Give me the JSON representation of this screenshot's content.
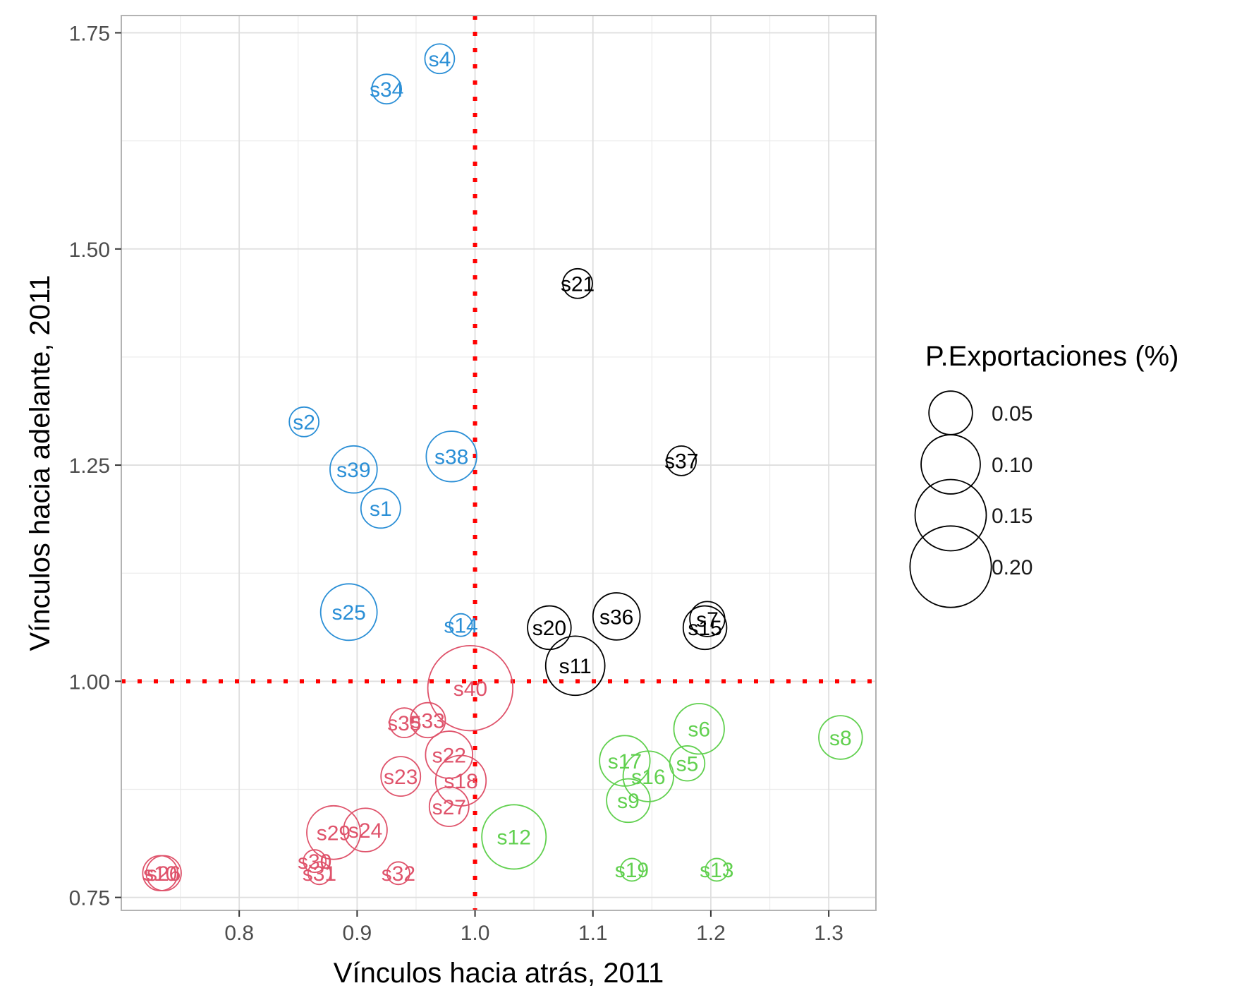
{
  "chart_data": {
    "type": "scatter",
    "xlabel": "Vínculos hacia atrás, 2011",
    "ylabel": "Vínculos hacia adelante, 2011",
    "xlim": [
      0.7,
      1.34
    ],
    "ylim": [
      0.735,
      1.77
    ],
    "x_ticks": [
      "0.8",
      "0.9",
      "1.0",
      "1.1",
      "1.2",
      "1.3"
    ],
    "y_ticks": [
      "0.75",
      "1.00",
      "1.25",
      "1.50",
      "1.75"
    ],
    "grid": true,
    "reference_lines": {
      "x": 1.0,
      "y": 1.0,
      "color": "#ff0000",
      "style": "dotted"
    },
    "legend": {
      "title": "P.Exportaciones (%)",
      "position": "right",
      "entries": [
        "0.05",
        "0.10",
        "0.15",
        "0.20"
      ],
      "sizes": [
        0.05,
        0.1,
        0.15,
        0.2
      ]
    },
    "group_colors": {
      "high_forward": "#2b8fd6",
      "key": "#000000",
      "weak": "#df536b",
      "high_backward": "#61d04f"
    },
    "points": [
      {
        "label": "s4",
        "x": 0.97,
        "y": 1.72,
        "size": 0.02,
        "group": "high_forward"
      },
      {
        "label": "s34",
        "x": 0.925,
        "y": 1.685,
        "size": 0.02,
        "group": "high_forward"
      },
      {
        "label": "s2",
        "x": 0.855,
        "y": 1.3,
        "size": 0.02,
        "group": "high_forward"
      },
      {
        "label": "s39",
        "x": 0.897,
        "y": 1.245,
        "size": 0.06,
        "group": "high_forward"
      },
      {
        "label": "s38",
        "x": 0.98,
        "y": 1.26,
        "size": 0.07,
        "group": "high_forward"
      },
      {
        "label": "s1",
        "x": 0.92,
        "y": 1.2,
        "size": 0.04,
        "group": "high_forward"
      },
      {
        "label": "s25",
        "x": 0.893,
        "y": 1.08,
        "size": 0.09,
        "group": "high_forward"
      },
      {
        "label": "s14",
        "x": 0.988,
        "y": 1.065,
        "size": 0.01,
        "group": "high_forward"
      },
      {
        "label": "s21",
        "x": 1.087,
        "y": 1.46,
        "size": 0.02,
        "group": "key"
      },
      {
        "label": "s37",
        "x": 1.175,
        "y": 1.255,
        "size": 0.02,
        "group": "key"
      },
      {
        "label": "s36",
        "x": 1.12,
        "y": 1.075,
        "size": 0.06,
        "group": "key"
      },
      {
        "label": "s7",
        "x": 1.197,
        "y": 1.072,
        "size": 0.03,
        "group": "key"
      },
      {
        "label": "s20",
        "x": 1.063,
        "y": 1.062,
        "size": 0.05,
        "group": "key"
      },
      {
        "label": "s15",
        "x": 1.195,
        "y": 1.062,
        "size": 0.05,
        "group": "key"
      },
      {
        "label": "s11",
        "x": 1.085,
        "y": 1.018,
        "size": 0.1,
        "group": "key"
      },
      {
        "label": "s40",
        "x": 0.996,
        "y": 0.992,
        "size": 0.22,
        "group": "weak"
      },
      {
        "label": "s35",
        "x": 0.94,
        "y": 0.952,
        "size": 0.02,
        "group": "weak"
      },
      {
        "label": "s33",
        "x": 0.96,
        "y": 0.955,
        "size": 0.03,
        "group": "weak"
      },
      {
        "label": "s22",
        "x": 0.978,
        "y": 0.915,
        "size": 0.06,
        "group": "weak"
      },
      {
        "label": "s23",
        "x": 0.937,
        "y": 0.89,
        "size": 0.04,
        "group": "weak"
      },
      {
        "label": "s18",
        "x": 0.988,
        "y": 0.885,
        "size": 0.07,
        "group": "weak"
      },
      {
        "label": "s27",
        "x": 0.978,
        "y": 0.855,
        "size": 0.04,
        "group": "weak"
      },
      {
        "label": "s29",
        "x": 0.88,
        "y": 0.825,
        "size": 0.08,
        "group": "weak"
      },
      {
        "label": "s24",
        "x": 0.907,
        "y": 0.828,
        "size": 0.05,
        "group": "weak"
      },
      {
        "label": "s30",
        "x": 0.864,
        "y": 0.792,
        "size": 0.01,
        "group": "weak"
      },
      {
        "label": "s31",
        "x": 0.868,
        "y": 0.778,
        "size": 0.01,
        "group": "weak"
      },
      {
        "label": "s32",
        "x": 0.935,
        "y": 0.778,
        "size": 0.01,
        "group": "weak"
      },
      {
        "label": "s10",
        "x": 0.733,
        "y": 0.778,
        "size": 0.03,
        "group": "weak"
      },
      {
        "label": "s26",
        "x": 0.736,
        "y": 0.778,
        "size": 0.03,
        "group": "weak"
      },
      {
        "label": "s6",
        "x": 1.19,
        "y": 0.945,
        "size": 0.07,
        "group": "high_backward"
      },
      {
        "label": "s8",
        "x": 1.31,
        "y": 0.935,
        "size": 0.05,
        "group": "high_backward"
      },
      {
        "label": "s17",
        "x": 1.127,
        "y": 0.908,
        "size": 0.07,
        "group": "high_backward"
      },
      {
        "label": "s5",
        "x": 1.18,
        "y": 0.905,
        "size": 0.03,
        "group": "high_backward"
      },
      {
        "label": "s16",
        "x": 1.147,
        "y": 0.89,
        "size": 0.07,
        "group": "high_backward"
      },
      {
        "label": "s9",
        "x": 1.13,
        "y": 0.862,
        "size": 0.05,
        "group": "high_backward"
      },
      {
        "label": "s12",
        "x": 1.033,
        "y": 0.82,
        "size": 0.12,
        "group": "high_backward"
      },
      {
        "label": "s19",
        "x": 1.133,
        "y": 0.782,
        "size": 0.01,
        "group": "high_backward"
      },
      {
        "label": "s13",
        "x": 1.205,
        "y": 0.782,
        "size": 0.01,
        "group": "high_backward"
      }
    ]
  }
}
